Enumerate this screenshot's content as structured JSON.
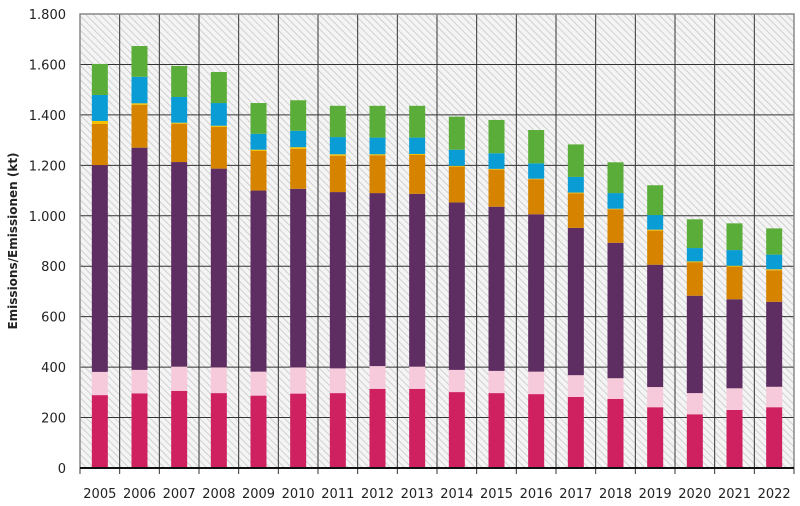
{
  "chart_data": {
    "type": "bar",
    "stacked": true,
    "title": "",
    "xlabel": "",
    "ylabel": "Emissions/Emissionen (kt)",
    "ylim": [
      0,
      1800
    ],
    "y_ticks": [
      0,
      200,
      400,
      600,
      800,
      1000,
      1200,
      1400,
      1600,
      1800
    ],
    "y_tick_labels": [
      "0",
      "200",
      "400",
      "600",
      "800",
      "1.000",
      "1.200",
      "1.400",
      "1.600",
      "1.800"
    ],
    "grid": true,
    "legend": "none",
    "categories": [
      "2005",
      "2006",
      "2007",
      "2008",
      "2009",
      "2010",
      "2011",
      "2012",
      "2013",
      "2014",
      "2015",
      "2016",
      "2017",
      "2018",
      "2019",
      "2020",
      "2021",
      "2022"
    ],
    "series": [
      {
        "color": "#cf2060",
        "values": [
          289,
          296,
          306,
          297,
          287,
          295,
          297,
          314,
          314,
          301,
          297,
          293,
          282,
          274,
          241,
          213,
          230,
          241
        ]
      },
      {
        "color": "#f7cadb",
        "values": [
          92,
          93,
          96,
          102,
          95,
          104,
          98,
          90,
          88,
          88,
          88,
          89,
          86,
          82,
          80,
          84,
          86,
          81
        ]
      },
      {
        "color": "#5e2d62",
        "values": [
          820,
          881,
          811,
          788,
          718,
          708,
          699,
          686,
          685,
          664,
          651,
          624,
          584,
          537,
          485,
          386,
          353,
          337
        ]
      },
      {
        "color": "#d68400",
        "values": [
          163,
          170,
          152,
          166,
          157,
          158,
          144,
          150,
          154,
          142,
          147,
          139,
          137,
          133,
          135,
          133,
          129,
          125
        ]
      },
      {
        "color": "#f4c000",
        "values": [
          12,
          6,
          4,
          4,
          5,
          7,
          6,
          4,
          4,
          3,
          3,
          2,
          3,
          2,
          4,
          3,
          4,
          4
        ]
      },
      {
        "color": "#0a9cd4",
        "values": [
          103,
          105,
          102,
          90,
          63,
          65,
          68,
          66,
          65,
          64,
          62,
          61,
          62,
          62,
          58,
          53,
          62,
          58
        ]
      },
      {
        "color": "#5aad38",
        "values": [
          123,
          122,
          123,
          123,
          122,
          121,
          124,
          126,
          126,
          131,
          132,
          132,
          129,
          122,
          118,
          114,
          106,
          104
        ]
      }
    ]
  }
}
